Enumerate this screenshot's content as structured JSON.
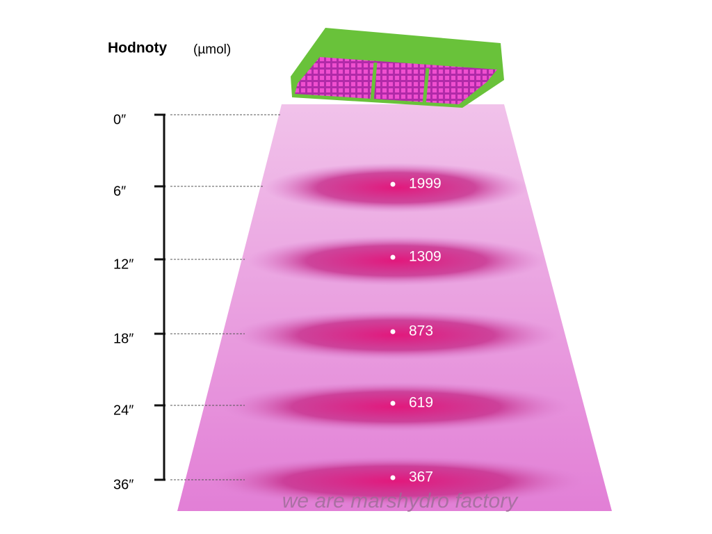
{
  "title": "Hodnoty",
  "unit": "(µmol)",
  "heights": [
    "0″",
    "6″",
    "12″",
    "18″",
    "24″",
    "36″"
  ],
  "readings": [
    1999,
    1309,
    873,
    619,
    367
  ],
  "watermark": "we are marshydro factory"
}
